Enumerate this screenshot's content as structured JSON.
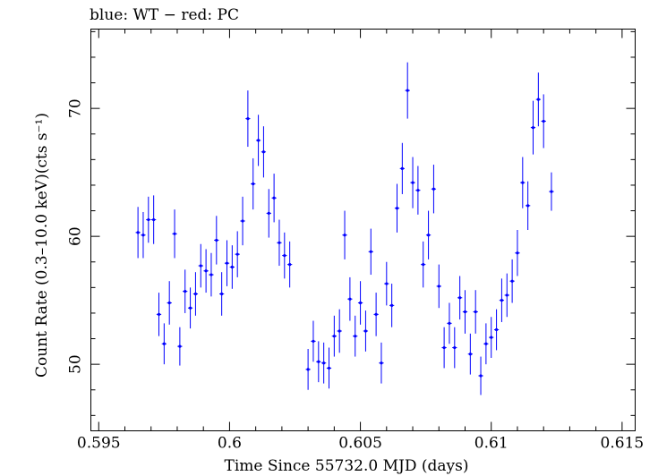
{
  "chart_data": {
    "type": "scatter",
    "title": "blue: WT − red: PC",
    "xlabel": "Time Since 55732.0 MJD (days)",
    "ylabel": "Count Rate (0.3–10.0 keV)(cts s⁻¹)",
    "xlim": [
      0.5947,
      0.6155
    ],
    "ylim": [
      44.8,
      76.2
    ],
    "x_ticks": [
      0.595,
      0.6,
      0.605,
      0.61,
      0.615
    ],
    "x_tick_labels": [
      "0.595",
      "0.6",
      "0.605",
      "0.61",
      "0.615"
    ],
    "y_ticks": [
      50,
      60,
      70
    ],
    "y_tick_labels": [
      "50",
      "60",
      "70"
    ],
    "grid": false,
    "series": [
      {
        "color": "#0000ff",
        "x_err": 9e-05,
        "points": [
          [
            0.5965,
            60.3,
            2.0
          ],
          [
            0.5967,
            60.1,
            1.8
          ],
          [
            0.5969,
            61.3,
            1.8
          ],
          [
            0.5971,
            61.3,
            1.9
          ],
          [
            0.5973,
            53.9,
            1.7
          ],
          [
            0.5975,
            51.6,
            1.6
          ],
          [
            0.5977,
            54.8,
            1.7
          ],
          [
            0.5979,
            60.2,
            1.9
          ],
          [
            0.5981,
            51.4,
            1.5
          ],
          [
            0.5983,
            55.7,
            1.7
          ],
          [
            0.5985,
            54.4,
            1.6
          ],
          [
            0.5987,
            55.5,
            1.7
          ],
          [
            0.5989,
            57.7,
            1.7
          ],
          [
            0.5991,
            57.3,
            1.7
          ],
          [
            0.5993,
            57.0,
            1.7
          ],
          [
            0.5995,
            59.7,
            1.9
          ],
          [
            0.5997,
            55.5,
            1.7
          ],
          [
            0.5999,
            57.9,
            1.8
          ],
          [
            0.6001,
            57.6,
            1.7
          ],
          [
            0.6003,
            58.6,
            1.8
          ],
          [
            0.6005,
            61.2,
            1.9
          ],
          [
            0.6007,
            69.2,
            2.2
          ],
          [
            0.6009,
            64.1,
            2.0
          ],
          [
            0.6011,
            67.5,
            2.0
          ],
          [
            0.6013,
            66.6,
            2.0
          ],
          [
            0.6015,
            61.8,
            1.9
          ],
          [
            0.6017,
            63.0,
            1.9
          ],
          [
            0.6019,
            59.5,
            1.8
          ],
          [
            0.6021,
            58.5,
            1.8
          ],
          [
            0.6023,
            57.8,
            1.8
          ],
          [
            0.603,
            49.6,
            1.6
          ],
          [
            0.6032,
            51.8,
            1.6
          ],
          [
            0.6034,
            50.2,
            1.6
          ],
          [
            0.6036,
            50.1,
            1.6
          ],
          [
            0.6038,
            49.7,
            1.6
          ],
          [
            0.604,
            52.2,
            1.6
          ],
          [
            0.6042,
            52.6,
            1.7
          ],
          [
            0.6044,
            60.1,
            1.9
          ],
          [
            0.6046,
            55.1,
            1.7
          ],
          [
            0.6048,
            52.2,
            1.6
          ],
          [
            0.605,
            54.8,
            1.7
          ],
          [
            0.6052,
            52.6,
            1.6
          ],
          [
            0.6054,
            58.8,
            1.8
          ],
          [
            0.6056,
            53.9,
            1.7
          ],
          [
            0.6058,
            50.1,
            1.6
          ],
          [
            0.606,
            56.3,
            1.7
          ],
          [
            0.6062,
            54.6,
            1.7
          ],
          [
            0.6064,
            62.2,
            1.9
          ],
          [
            0.6066,
            65.3,
            2.0
          ],
          [
            0.6068,
            71.4,
            2.2
          ],
          [
            0.607,
            64.2,
            2.0
          ],
          [
            0.6072,
            63.6,
            1.9
          ],
          [
            0.6074,
            57.8,
            1.8
          ],
          [
            0.6076,
            60.1,
            1.9
          ],
          [
            0.6078,
            63.7,
            1.9
          ],
          [
            0.608,
            56.1,
            1.7
          ],
          [
            0.6082,
            51.3,
            1.6
          ],
          [
            0.6084,
            53.2,
            1.6
          ],
          [
            0.6086,
            51.3,
            1.6
          ],
          [
            0.6088,
            55.2,
            1.7
          ],
          [
            0.609,
            54.1,
            1.7
          ],
          [
            0.6092,
            50.8,
            1.6
          ],
          [
            0.6094,
            54.1,
            1.7
          ],
          [
            0.6096,
            49.1,
            1.5
          ],
          [
            0.6098,
            51.6,
            1.6
          ],
          [
            0.61,
            52.1,
            1.6
          ],
          [
            0.6102,
            52.7,
            1.6
          ],
          [
            0.6104,
            55.0,
            1.7
          ],
          [
            0.6106,
            55.4,
            1.7
          ],
          [
            0.6108,
            56.5,
            1.7
          ],
          [
            0.611,
            58.7,
            1.8
          ],
          [
            0.6112,
            64.2,
            2.0
          ],
          [
            0.6114,
            62.4,
            1.9
          ],
          [
            0.6116,
            68.5,
            2.1
          ],
          [
            0.6118,
            70.7,
            2.1
          ],
          [
            0.612,
            69.0,
            2.1
          ],
          [
            0.6123,
            63.5,
            1.5
          ]
        ]
      }
    ]
  }
}
